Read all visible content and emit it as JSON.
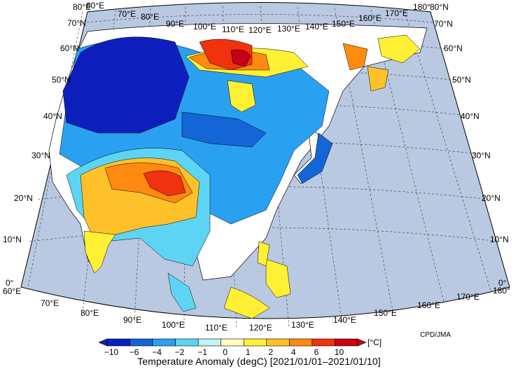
{
  "map": {
    "ocean_color": "#b9c9e1",
    "land_color": "#ffffff",
    "lon_labels_top": [
      "80°E",
      "60°E",
      "70°E",
      "80°E",
      "90°E",
      "100°E",
      "110°E",
      "120°E",
      "130°E",
      "140°E",
      "150°E",
      "160°E",
      "170°E",
      "180°"
    ],
    "lon_labels_bottom": [
      "60°E",
      "70°E",
      "80°E",
      "90°E",
      "100°E",
      "110°E",
      "120°E",
      "130°E",
      "140°E",
      "150°E",
      "160°E",
      "170°E",
      "180°"
    ],
    "lat_labels_left": [
      "70°N",
      "60°N",
      "50°N",
      "40°N",
      "30°N",
      "20°N",
      "10°N",
      "0°"
    ],
    "lat_labels_right": [
      "80°N",
      "70°N",
      "60°N",
      "50°N",
      "40°N",
      "30°N",
      "20°N",
      "10°N",
      "0°"
    ]
  },
  "colorbar": {
    "unit": "[°C]",
    "tick_labels": [
      "−10",
      "−6",
      "−4",
      "−2",
      "−1",
      "0",
      "1",
      "2",
      "4",
      "6",
      "10"
    ],
    "colors": [
      "#0c1fbd",
      "#1466d6",
      "#2aa0f0",
      "#5ed4f4",
      "#c0f2f8",
      "#fffbbe",
      "#fff034",
      "#ffc12a",
      "#ff8a10",
      "#f0320e",
      "#c80018"
    ]
  },
  "credit": "CPD/JMA",
  "title": "Temperature Anomaly (degC) [2021/01/01–2021/01/10]"
}
